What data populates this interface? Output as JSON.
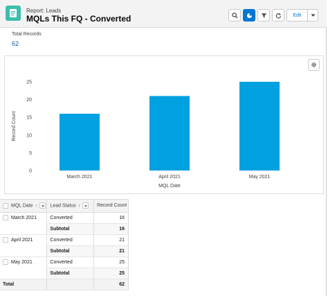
{
  "header": {
    "eyebrow": "Report: Leads",
    "title": "MQLs This FQ - Converted",
    "edit_label": "Edit"
  },
  "summary": {
    "total_label": "Total Records",
    "total_value": "62"
  },
  "colors": {
    "accent": "#0176d3",
    "bar": "#00a1e0",
    "icon_bg": "#3bbfad"
  },
  "chart_data": {
    "type": "bar",
    "categories": [
      "March 2021",
      "April 2021",
      "May 2021"
    ],
    "values": [
      16,
      21,
      25
    ],
    "xlabel": "MQL Date",
    "ylabel": "Record Count",
    "ylim": [
      0,
      25
    ],
    "yticks": [
      0,
      5,
      10,
      15,
      20,
      25
    ],
    "grid": false
  },
  "table": {
    "headers": [
      "MQL Date",
      "Lead Status",
      "Record Count"
    ],
    "sort_arrow": "↑",
    "groups": [
      {
        "date": "March 2021",
        "status": "Converted",
        "count": "16",
        "subtotal_label": "Subtotal",
        "subtotal": "16"
      },
      {
        "date": "April 2021",
        "status": "Converted",
        "count": "21",
        "subtotal_label": "Subtotal",
        "subtotal": "21"
      },
      {
        "date": "May 2021",
        "status": "Converted",
        "count": "25",
        "subtotal_label": "Subtotal",
        "subtotal": "25"
      }
    ],
    "total_label": "Total",
    "total_value": "62"
  }
}
